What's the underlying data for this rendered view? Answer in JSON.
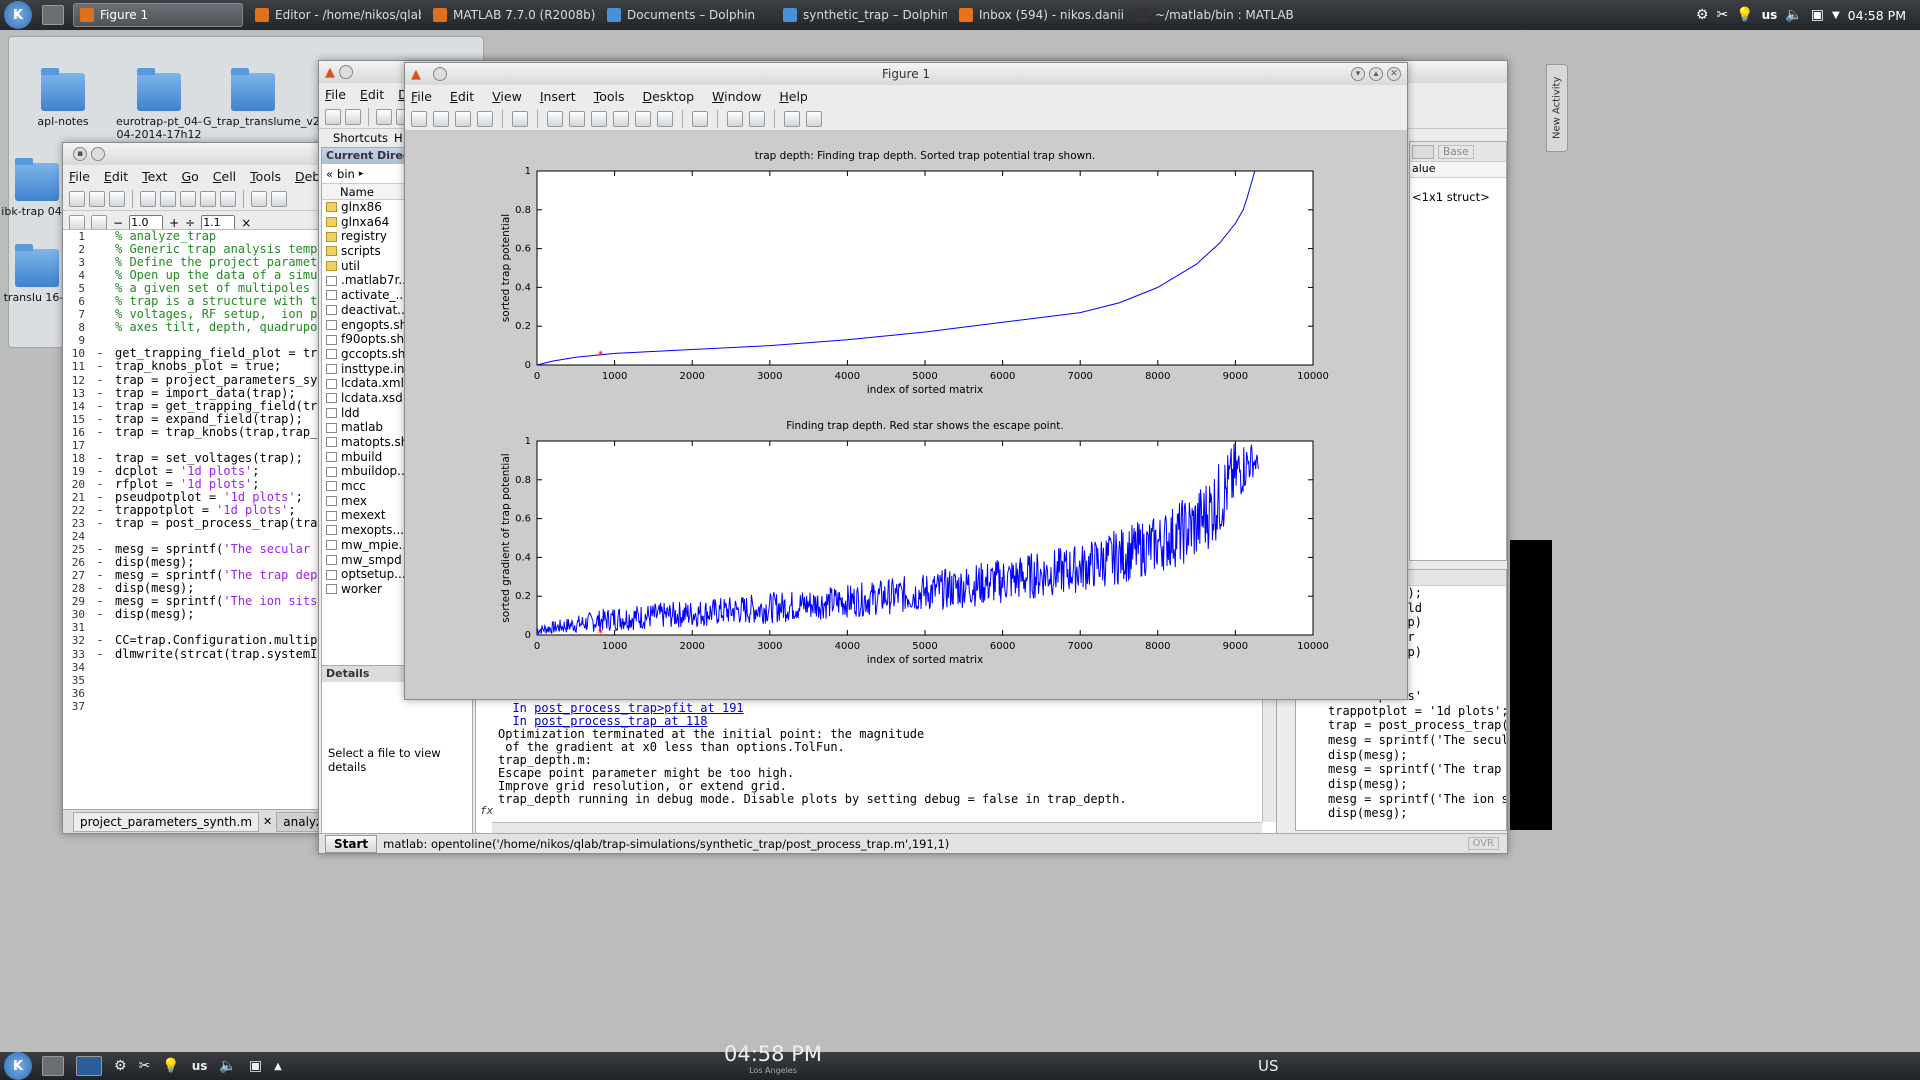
{
  "top_panel": {
    "tasks": [
      {
        "label": "Figure 1",
        "active": true,
        "icon_color": "#e0701a"
      },
      {
        "label": "Editor - /home/nikos/qlab/trap-sim",
        "active": false,
        "icon_color": "#e0701a"
      },
      {
        "label": "MATLAB  7.7.0 (R2008b)",
        "active": false,
        "icon_color": "#e0701a"
      },
      {
        "label": "Documents – Dolphin",
        "active": false,
        "icon_color": "#4a90d9"
      },
      {
        "label": "synthetic_trap – Dolphin",
        "active": false,
        "icon_color": "#4a90d9"
      },
      {
        "label": "Inbox (594) - nikos.daniilidis@gm",
        "active": false,
        "icon_color": "#e8731c"
      },
      {
        "label": "~/matlab/bin : MATLAB",
        "active": false,
        "icon_color": "#333333"
      }
    ],
    "keyboard_layout": "us",
    "clock": "04:58 PM"
  },
  "desktop": {
    "icons": [
      "apl-notes",
      "eurotrap-pt_04-04-2014-17h12",
      "G_trap_translume_v2_0",
      "ibk-trap 04-2",
      "translu 16-2"
    ]
  },
  "editor": {
    "title": "Editor - /home/nikos/qlab/trap-sim",
    "menus": [
      "File",
      "Edit",
      "Text",
      "Go",
      "Cell",
      "Tools",
      "Debug",
      "De"
    ],
    "cell_step1": "1.0",
    "cell_step2": "1.1",
    "lines": [
      {
        "n": "1",
        "d": "",
        "t": "% analyze_trap",
        "c": true
      },
      {
        "n": "2",
        "d": "",
        "t": "% Generic trap analysis templat",
        "c": true
      },
      {
        "n": "3",
        "d": "",
        "t": "% Define the project parameters",
        "c": true
      },
      {
        "n": "4",
        "d": "",
        "t": "% Open up the data of a simulat",
        "c": true
      },
      {
        "n": "5",
        "d": "",
        "t": "% a given set of multipoles and",
        "c": true
      },
      {
        "n": "6",
        "d": "",
        "t": "% trap is a structure with trap",
        "c": true
      },
      {
        "n": "7",
        "d": "",
        "t": "% voltages, RF setup,  ion posi",
        "c": true
      },
      {
        "n": "8",
        "d": "",
        "t": "% axes tilt, depth, quadrupole",
        "c": true
      },
      {
        "n": "9",
        "d": "",
        "t": "",
        "c": false
      },
      {
        "n": "10",
        "d": "-",
        "t": "get_trapping_field_plot = true;",
        "c": false
      },
      {
        "n": "11",
        "d": "-",
        "t": "trap_knobs_plot = true;",
        "c": false
      },
      {
        "n": "12",
        "d": "-",
        "t": "trap = project_parameters_synth",
        "c": false
      },
      {
        "n": "13",
        "d": "-",
        "t": "trap = import_data(trap);",
        "c": false
      },
      {
        "n": "14",
        "d": "-",
        "t": "trap = get_trapping_field(trap,",
        "c": false
      },
      {
        "n": "15",
        "d": "-",
        "t": "trap = expand_field(trap);",
        "c": false
      },
      {
        "n": "16",
        "d": "-",
        "t": "trap = trap_knobs(trap,trap_kno",
        "c": false
      },
      {
        "n": "17",
        "d": "",
        "t": "",
        "c": false
      },
      {
        "n": "18",
        "d": "-",
        "t": "trap = set_voltages(trap);",
        "c": false
      },
      {
        "n": "19",
        "d": "-",
        "t": "dcplot = '1d plots';",
        "c": false
      },
      {
        "n": "20",
        "d": "-",
        "t": "rfplot = '1d plots';",
        "c": false
      },
      {
        "n": "21",
        "d": "-",
        "t": "pseudpotplot = '1d plots';",
        "c": false
      },
      {
        "n": "22",
        "d": "-",
        "t": "trappotplot = '1d plots';",
        "c": false
      },
      {
        "n": "23",
        "d": "-",
        "t": "trap = post_process_trap(trap,'",
        "c": false
      },
      {
        "n": "24",
        "d": "",
        "t": "",
        "c": false
      },
      {
        "n": "25",
        "d": "-",
        "t": "mesg = sprintf('The secular fre",
        "c": false
      },
      {
        "n": "26",
        "d": "-",
        "t": "disp(mesg);",
        "c": false
      },
      {
        "n": "27",
        "d": "-",
        "t": "mesg = sprintf('The trap depth ",
        "c": false
      },
      {
        "n": "28",
        "d": "-",
        "t": "disp(mesg);",
        "c": false
      },
      {
        "n": "29",
        "d": "-",
        "t": "mesg = sprintf('The ion sits at",
        "c": false
      },
      {
        "n": "30",
        "d": "-",
        "t": "disp(mesg);",
        "c": false
      },
      {
        "n": "31",
        "d": "",
        "t": "",
        "c": false
      },
      {
        "n": "32",
        "d": "-",
        "t": "CC=trap.Configuration.multipole",
        "c": false
      },
      {
        "n": "33",
        "d": "-",
        "t": "dlmwrite(strcat(trap.systemInfo",
        "c": false
      },
      {
        "n": "34",
        "d": "",
        "t": "",
        "c": false
      },
      {
        "n": "35",
        "d": "",
        "t": "",
        "c": false
      },
      {
        "n": "36",
        "d": "",
        "t": "",
        "c": false
      },
      {
        "n": "37",
        "d": "",
        "t": "",
        "c": false
      }
    ],
    "tabs": [
      "project_parameters_synth.m",
      "analyze_trap.m"
    ]
  },
  "matlab": {
    "menus": [
      "File",
      "Edit",
      "Deb"
    ],
    "shortcuts_label": "Shortcuts",
    "how_to_add": "H",
    "current_dir_title": "Current Direct...",
    "breadcrumb": "bin",
    "name_column": "Name",
    "files": [
      {
        "name": "glnx86",
        "folder": true
      },
      {
        "name": "glnxa64",
        "folder": true
      },
      {
        "name": "registry",
        "folder": true
      },
      {
        "name": "scripts",
        "folder": true
      },
      {
        "name": "util",
        "folder": true
      },
      {
        "name": ".matlab7r...",
        "folder": false
      },
      {
        "name": "activate_...",
        "folder": false
      },
      {
        "name": "deactivat...",
        "folder": false
      },
      {
        "name": "engopts.sh",
        "folder": false
      },
      {
        "name": "f90opts.sh",
        "folder": false
      },
      {
        "name": "gccopts.sh",
        "folder": false
      },
      {
        "name": "insttype.ini",
        "folder": false
      },
      {
        "name": "lcdata.xml",
        "folder": false
      },
      {
        "name": "lcdata.xsd",
        "folder": false
      },
      {
        "name": "ldd",
        "folder": false
      },
      {
        "name": "matlab",
        "folder": false
      },
      {
        "name": "matopts.sh",
        "folder": false
      },
      {
        "name": "mbuild",
        "folder": false
      },
      {
        "name": "mbuildop...",
        "folder": false
      },
      {
        "name": "mcc",
        "folder": false
      },
      {
        "name": "mex",
        "folder": false
      },
      {
        "name": "mexext",
        "folder": false
      },
      {
        "name": "mexopts....",
        "folder": false
      },
      {
        "name": "mw_mpie...",
        "folder": false
      },
      {
        "name": "mw_smpd",
        "folder": false
      },
      {
        "name": "optsetup....",
        "folder": false
      },
      {
        "name": "worker",
        "folder": false
      }
    ],
    "details_title": "Details",
    "details_text": "Select a file to view details",
    "command_lines": [
      {
        "pre": "  In ",
        "link": "post_process_trap>pfit at 191",
        "is_link": true
      },
      {
        "pre": "  In ",
        "link": "post_process_trap at 118",
        "is_link": true
      },
      {
        "pre": "Optimization terminated at the initial point: the magnitude",
        "link": "",
        "is_link": false
      },
      {
        "pre": " of the gradient at x0 less than options.TolFun.",
        "link": "",
        "is_link": false
      },
      {
        "pre": "trap_depth.m:",
        "link": "",
        "is_link": false
      },
      {
        "pre": "Escape point parameter might be too high.",
        "link": "",
        "is_link": false
      },
      {
        "pre": "Improve grid resolution, or extend grid.",
        "link": "",
        "is_link": false
      },
      {
        "pre": "trap_depth running in debug mode. Disable plots by setting debug = false in trap_depth.",
        "link": "",
        "is_link": false
      }
    ],
    "fx_label": "fx",
    "workspace": {
      "stack_label": "Base",
      "value_header": "alue",
      "value": "<1x1 struct>"
    },
    "history_lines": [
      "t_data(trap);",
      "rapping_field",
      "d_field(trap)",
      "nobs(trap,tr",
      "oltages(trap)",
      " plots';",
      " plots';",
      " = '1d plots'",
      "trappotplot = '1d plots';",
      "trap = post_process_trap(",
      "mesg = sprintf('The secul",
      "disp(mesg);",
      "mesg = sprintf('The trap",
      "disp(mesg);",
      "mesg = sprintf('The ion s",
      "disp(mesg);"
    ],
    "start_label": "Start",
    "status_text": "matlab: opentoline('/home/nikos/qlab/trap-simulations/synthetic_trap/post_process_trap.m',191,1)",
    "ovr": "OVR"
  },
  "figure": {
    "title": "Figure 1",
    "menus": [
      "File",
      "Edit",
      "View",
      "Insert",
      "Tools",
      "Desktop",
      "Window",
      "Help"
    ]
  },
  "chart_data": [
    {
      "type": "line",
      "title": "trap depth: Finding trap depth. Sorted trap potential trap shown.",
      "xlabel": "index of sorted matrix",
      "ylabel": "sorted trap potential",
      "xlim": [
        0,
        10000
      ],
      "ylim": [
        0,
        1
      ],
      "xticks": [
        0,
        1000,
        2000,
        3000,
        4000,
        5000,
        6000,
        7000,
        8000,
        9000,
        10000
      ],
      "yticks": [
        0,
        0.2,
        0.4,
        0.6,
        0.8,
        1
      ],
      "series": [
        {
          "color": "#0000ff",
          "x": [
            0,
            200,
            500,
            1000,
            2000,
            3000,
            4000,
            5000,
            6000,
            7000,
            7500,
            8000,
            8500,
            8800,
            9000,
            9100,
            9150,
            9200,
            9250
          ],
          "y": [
            0.0,
            0.02,
            0.04,
            0.06,
            0.08,
            0.1,
            0.13,
            0.17,
            0.22,
            0.27,
            0.32,
            0.4,
            0.52,
            0.63,
            0.73,
            0.8,
            0.86,
            0.93,
            1.0
          ]
        }
      ],
      "marker": {
        "x": 820,
        "y": 0.055,
        "color": "#ff0000",
        "symbol": "*"
      }
    },
    {
      "type": "line",
      "title": "Finding trap depth. Red star shows the escape point.",
      "xlabel": "index of sorted matrix",
      "ylabel": "sorted gradient of trap potential",
      "xlim": [
        0,
        10000
      ],
      "ylim": [
        0,
        1
      ],
      "xticks": [
        0,
        1000,
        2000,
        3000,
        4000,
        5000,
        6000,
        7000,
        8000,
        9000,
        10000
      ],
      "yticks": [
        0,
        0.2,
        0.4,
        0.6,
        0.8,
        1
      ],
      "series": [
        {
          "color": "#0000ff",
          "style": "noisy-band",
          "x": [
            0,
            1000,
            2000,
            3000,
            4000,
            5000,
            6000,
            7000,
            7500,
            8000,
            8500,
            8800,
            9000,
            9200,
            9300
          ],
          "low": [
            0.0,
            0.02,
            0.04,
            0.06,
            0.09,
            0.12,
            0.16,
            0.22,
            0.26,
            0.32,
            0.38,
            0.5,
            0.65,
            0.8,
            0.85
          ],
          "high": [
            0.05,
            0.15,
            0.18,
            0.22,
            0.26,
            0.32,
            0.4,
            0.47,
            0.55,
            0.62,
            0.75,
            0.9,
            1.0,
            1.0,
            0.92
          ]
        }
      ],
      "marker": {
        "x": 820,
        "y": 0.01,
        "color": "#ff0000",
        "symbol": "*"
      }
    }
  ],
  "bottom_panel": {
    "clock": "04:58 PM",
    "timezone": "Los Angeles",
    "layout": "US",
    "kbd": "us"
  }
}
